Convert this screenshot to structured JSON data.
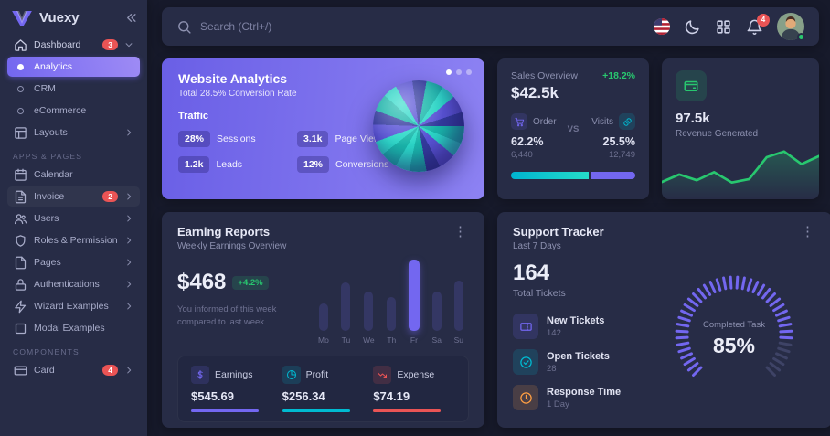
{
  "colors": {
    "primary": "#7367f0",
    "success": "#28c76f",
    "info": "#00bad1",
    "danger": "#ea5455",
    "warning": "#ff9f43"
  },
  "sidebar": {
    "brand": "Vuexy",
    "sections": {
      "apps_pages": "APPS & PAGES",
      "components": "COMPONENTS"
    },
    "items": {
      "dashboard": {
        "label": "Dashboard",
        "badge": "3"
      },
      "analytics": {
        "label": "Analytics"
      },
      "crm": {
        "label": "CRM"
      },
      "ecommerce": {
        "label": "eCommerce"
      },
      "layouts": {
        "label": "Layouts"
      },
      "calendar": {
        "label": "Calendar"
      },
      "invoice": {
        "label": "Invoice",
        "badge": "2"
      },
      "users": {
        "label": "Users"
      },
      "roles": {
        "label": "Roles & Permissions"
      },
      "pages": {
        "label": "Pages"
      },
      "auth": {
        "label": "Authentications"
      },
      "wizard": {
        "label": "Wizard Examples"
      },
      "modal": {
        "label": "Modal Examples"
      },
      "card": {
        "label": "Card",
        "badge": "4"
      }
    }
  },
  "topbar": {
    "search_placeholder": "Search (Ctrl+/)",
    "notification_count": "4"
  },
  "cards": {
    "website_analytics": {
      "title": "Website Analytics",
      "subtitle": "Total 28.5% Conversion Rate",
      "section": "Traffic",
      "stats": [
        {
          "value": "28%",
          "label": "Sessions"
        },
        {
          "value": "3.1k",
          "label": "Page Views"
        },
        {
          "value": "1.2k",
          "label": "Leads"
        },
        {
          "value": "12%",
          "label": "Conversions"
        }
      ]
    },
    "sales_overview": {
      "title": "Sales Overview",
      "change": "+18.2%",
      "amount": "$42.5k",
      "vs_label": "VS",
      "order": {
        "label": "Order",
        "percent": "62.2%",
        "count": "6,440"
      },
      "visits": {
        "label": "Visits",
        "percent": "25.5%",
        "count": "12,749"
      },
      "progress_left_pct": 62.2
    },
    "revenue": {
      "value": "97.5k",
      "label": "Revenue Generated",
      "spark": [
        25,
        38,
        28,
        42,
        24,
        30,
        68,
        78,
        56,
        70
      ]
    },
    "earning_reports": {
      "title": "Earning Reports",
      "subtitle": "Weekly Earnings Overview",
      "amount": "$468",
      "change": "+4.2%",
      "note": "You informed of this week compared to last week",
      "chart": {
        "type": "bar",
        "days": [
          "Mo",
          "Tu",
          "We",
          "Th",
          "Fr",
          "Sa",
          "Su"
        ],
        "values": [
          38,
          68,
          55,
          48,
          100,
          55,
          70
        ],
        "active_index": 4
      },
      "stats": [
        {
          "label": "Earnings",
          "value": "$545.69",
          "color": "#7367f0"
        },
        {
          "label": "Profit",
          "value": "$256.34",
          "color": "#00bad1"
        },
        {
          "label": "Expense",
          "value": "$74.19",
          "color": "#ea5455"
        }
      ]
    },
    "support_tracker": {
      "title": "Support Tracker",
      "subtitle": "Last 7 Days",
      "total": "164",
      "total_label": "Total Tickets",
      "items": [
        {
          "label": "New Tickets",
          "value": "142",
          "color": "#7367f0"
        },
        {
          "label": "Open Tickets",
          "value": "28",
          "color": "#00bad1"
        },
        {
          "label": "Response Time",
          "value": "1 Day",
          "color": "#ff9f43"
        }
      ],
      "gauge": {
        "label": "Completed Task",
        "value": "85%",
        "percent": 85
      }
    }
  }
}
